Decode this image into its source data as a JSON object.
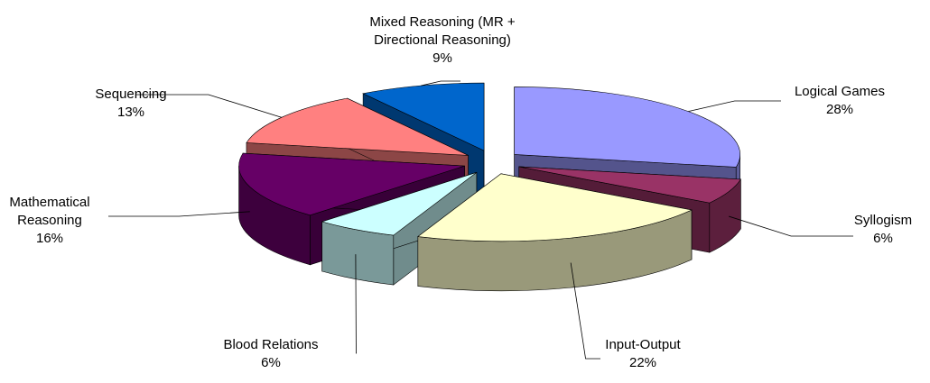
{
  "chart_data": {
    "type": "pie",
    "categories": [
      "Logical Games",
      "Syllogism",
      "Input-Output",
      "Blood Relations",
      "Mathematical Reasoning",
      "Sequencing",
      "Mixed Reasoning (MR + Directional Reasoning)"
    ],
    "values": [
      28,
      6,
      22,
      6,
      16,
      13,
      9
    ],
    "value_labels": [
      "28%",
      "6%",
      "22%",
      "6%",
      "16%",
      "13%",
      "9%"
    ],
    "colors": [
      "#9999ff",
      "#993366",
      "#ffffcc",
      "#ccffff",
      "#660066",
      "#ff8080",
      "#0066cc"
    ],
    "exploded": true,
    "three_d": true
  }
}
